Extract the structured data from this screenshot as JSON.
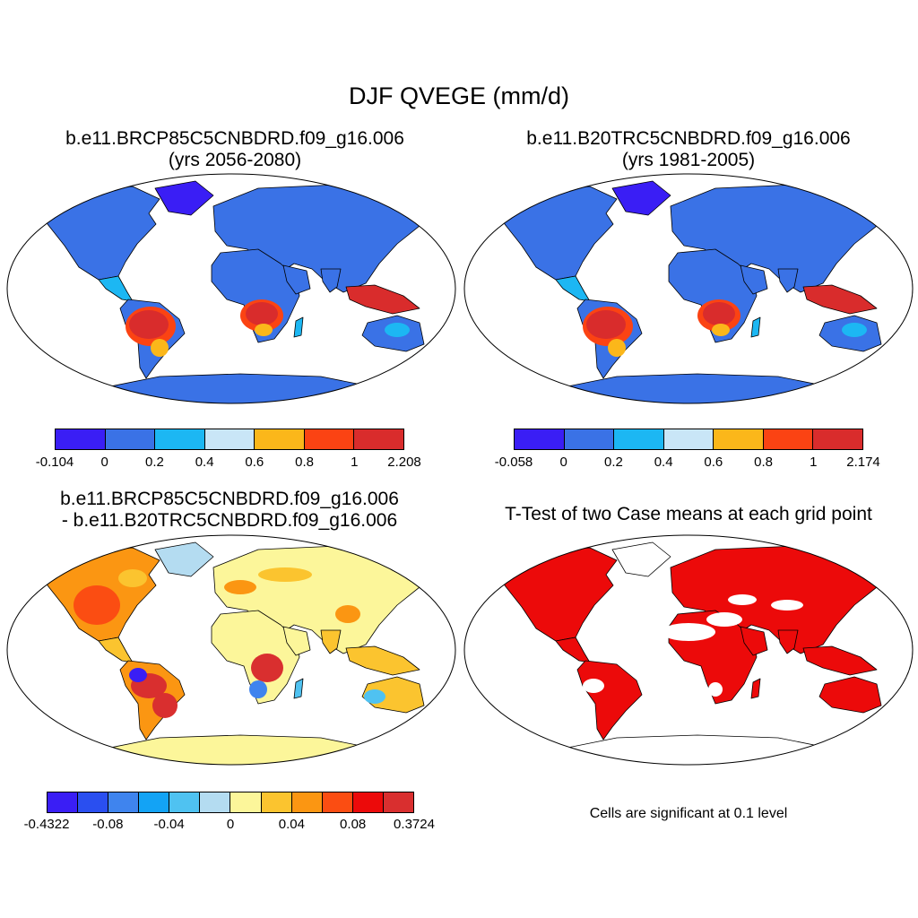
{
  "title": "DJF QVEGE (mm/d)",
  "panels": [
    {
      "title_line1": "b.e11.BRCP85C5CNBDRD.f09_g16.006",
      "title_line2": "(yrs 2056-2080)",
      "colorbar": {
        "colors": [
          "#3a1ef5",
          "#3a72e6",
          "#1cb7f3",
          "#c9e6f7",
          "#fbb71a",
          "#fb4313",
          "#d92c2c"
        ],
        "tick_labels": [
          "-0.104",
          "0",
          "0.2",
          "0.4",
          "0.6",
          "0.8",
          "1",
          "2.208"
        ]
      }
    },
    {
      "title_line1": "b.e11.B20TRC5CNBDRD.f09_g16.006",
      "title_line2": "(yrs 1981-2005)",
      "colorbar": {
        "colors": [
          "#3a1ef5",
          "#3a72e6",
          "#1cb7f3",
          "#c9e6f7",
          "#fbb71a",
          "#fb4313",
          "#d92c2c"
        ],
        "tick_labels": [
          "-0.058",
          "0",
          "0.2",
          "0.4",
          "0.6",
          "0.8",
          "1",
          "2.174"
        ]
      }
    },
    {
      "title_line1": "b.e11.BRCP85C5CNBDRD.f09_g16.006",
      "title_line2": "- b.e11.B20TRC5CNBDRD.f09_g16.006",
      "colorbar": {
        "colors": [
          "#3a1ef5",
          "#2a4ff0",
          "#3f84ee",
          "#13a3f5",
          "#4fc2f1",
          "#b4dcf1",
          "#fcf69a",
          "#fbc42f",
          "#fb9612",
          "#fb4d12",
          "#ec0a0a",
          "#d92f2f"
        ],
        "tick_labels": [
          "-0.4322",
          "-0.08",
          "-0.04",
          "0",
          "0.04",
          "0.08",
          "0.3724"
        ]
      }
    },
    {
      "title_line1": "T-Test of two Case means at each grid point",
      "note": "Cells are significant at 0.1 level"
    }
  ]
}
